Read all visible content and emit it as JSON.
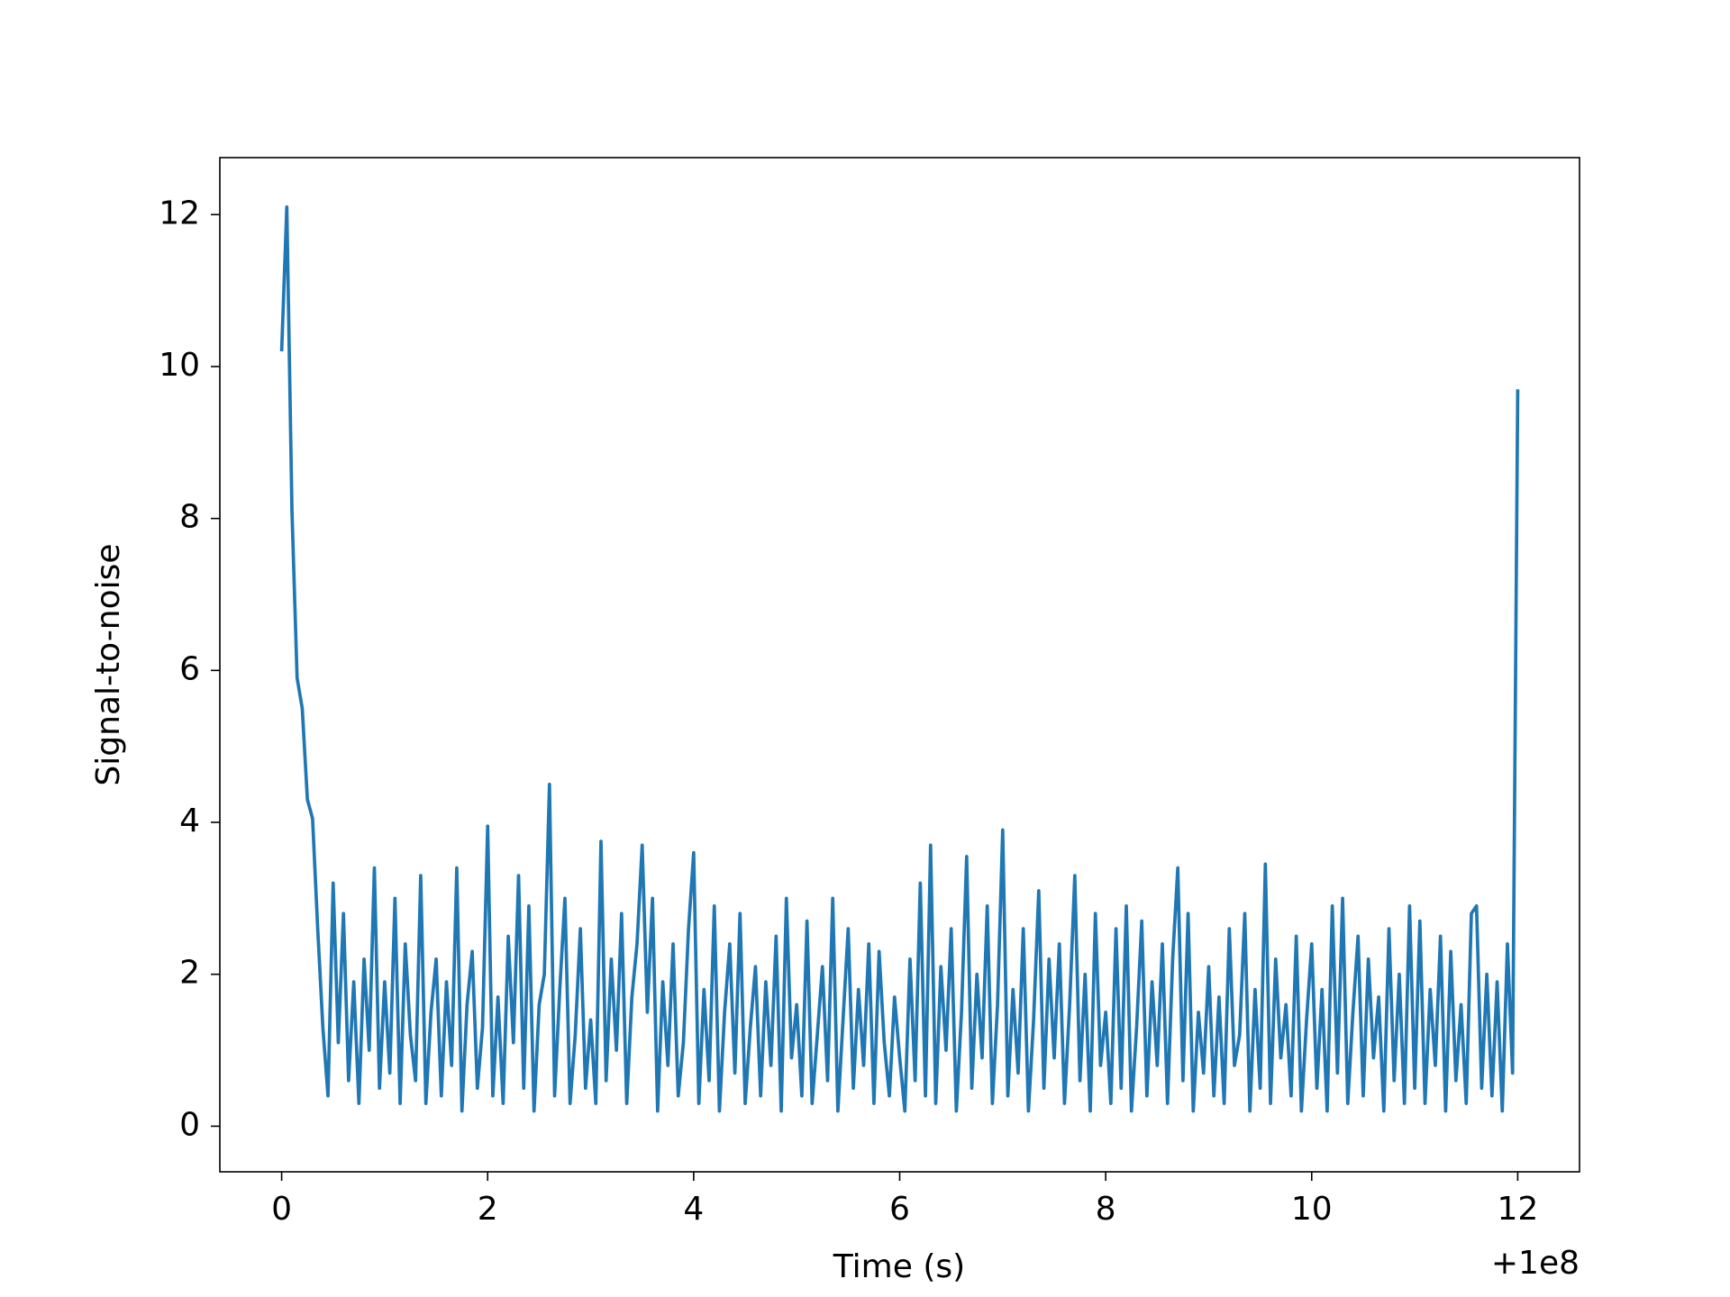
{
  "chart_data": {
    "type": "line",
    "xlabel": "Time (s)",
    "ylabel": "Signal-to-noise",
    "x_offset_label": "+1e8",
    "color": "#1f77b4",
    "xlim": [
      -0.6,
      12.6
    ],
    "ylim": [
      -0.6,
      12.75
    ],
    "xticks": [
      0,
      2,
      4,
      6,
      8,
      10,
      12
    ],
    "yticks": [
      0,
      2,
      4,
      6,
      8,
      10,
      12
    ],
    "x": [
      0,
      0.05,
      0.1,
      0.15,
      0.2,
      0.25,
      0.3,
      0.35,
      0.4,
      0.45,
      0.5,
      0.55,
      0.6,
      0.65,
      0.7,
      0.75,
      0.8,
      0.85,
      0.9,
      0.95,
      1,
      1.05,
      1.1,
      1.15,
      1.2,
      1.25,
      1.3,
      1.35,
      1.4,
      1.45,
      1.5,
      1.55,
      1.6,
      1.65,
      1.7,
      1.75,
      1.8,
      1.85,
      1.9,
      1.95,
      2,
      2.05,
      2.1,
      2.15,
      2.2,
      2.25,
      2.3,
      2.35,
      2.4,
      2.45,
      2.5,
      2.55,
      2.6,
      2.65,
      2.7,
      2.75,
      2.8,
      2.85,
      2.9,
      2.95,
      3,
      3.05,
      3.1,
      3.15,
      3.2,
      3.25,
      3.3,
      3.35,
      3.4,
      3.45,
      3.5,
      3.55,
      3.6,
      3.65,
      3.7,
      3.75,
      3.8,
      3.85,
      3.9,
      3.95,
      4,
      4.05,
      4.1,
      4.15,
      4.2,
      4.25,
      4.3,
      4.35,
      4.4,
      4.45,
      4.5,
      4.55,
      4.6,
      4.65,
      4.7,
      4.75,
      4.8,
      4.85,
      4.9,
      4.95,
      5,
      5.05,
      5.1,
      5.15,
      5.2,
      5.25,
      5.3,
      5.35,
      5.4,
      5.45,
      5.5,
      5.55,
      5.6,
      5.65,
      5.7,
      5.75,
      5.8,
      5.85,
      5.9,
      5.95,
      6,
      6.05,
      6.1,
      6.15,
      6.2,
      6.25,
      6.3,
      6.35,
      6.4,
      6.45,
      6.5,
      6.55,
      6.6,
      6.65,
      6.7,
      6.75,
      6.8,
      6.85,
      6.9,
      6.95,
      7,
      7.05,
      7.1,
      7.15,
      7.2,
      7.25,
      7.3,
      7.35,
      7.4,
      7.45,
      7.5,
      7.55,
      7.6,
      7.65,
      7.7,
      7.75,
      7.8,
      7.85,
      7.9,
      7.95,
      8,
      8.05,
      8.1,
      8.15,
      8.2,
      8.25,
      8.3,
      8.35,
      8.4,
      8.45,
      8.5,
      8.55,
      8.6,
      8.65,
      8.7,
      8.75,
      8.8,
      8.85,
      8.9,
      8.95,
      9,
      9.05,
      9.1,
      9.15,
      9.2,
      9.25,
      9.3,
      9.35,
      9.4,
      9.45,
      9.5,
      9.55,
      9.6,
      9.65,
      9.7,
      9.75,
      9.8,
      9.85,
      9.9,
      9.95,
      10,
      10.05,
      10.1,
      10.15,
      10.2,
      10.25,
      10.3,
      10.35,
      10.4,
      10.45,
      10.5,
      10.55,
      10.6,
      10.65,
      10.7,
      10.75,
      10.8,
      10.85,
      10.9,
      10.95,
      11,
      11.05,
      11.1,
      11.15,
      11.2,
      11.25,
      11.3,
      11.35,
      11.4,
      11.45,
      11.5,
      11.55,
      11.6,
      11.65,
      11.7,
      11.75,
      11.8,
      11.85,
      11.9,
      11.95,
      12
    ],
    "values": [
      10.2,
      12.1,
      8.1,
      5.9,
      5.5,
      4.3,
      4.05,
      2.6,
      1.3,
      0.4,
      3.2,
      1.1,
      2.8,
      0.6,
      1.9,
      0.3,
      2.2,
      1.0,
      3.4,
      0.5,
      1.9,
      0.7,
      3.0,
      0.3,
      2.4,
      1.2,
      0.6,
      3.3,
      0.3,
      1.5,
      2.2,
      0.4,
      1.9,
      0.8,
      3.4,
      0.2,
      1.6,
      2.3,
      0.5,
      1.3,
      3.95,
      0.4,
      1.7,
      0.3,
      2.5,
      1.1,
      3.3,
      0.5,
      2.9,
      0.2,
      1.6,
      2.0,
      4.5,
      0.4,
      1.8,
      3.0,
      0.3,
      1.2,
      2.6,
      0.5,
      1.4,
      0.3,
      3.75,
      0.6,
      2.2,
      1.0,
      2.8,
      0.3,
      1.7,
      2.4,
      3.7,
      1.5,
      3.0,
      0.2,
      1.9,
      0.8,
      2.4,
      0.4,
      1.1,
      2.6,
      3.6,
      0.3,
      1.8,
      0.6,
      2.9,
      0.2,
      1.5,
      2.4,
      0.7,
      2.8,
      0.3,
      1.3,
      2.1,
      0.4,
      1.9,
      0.8,
      2.5,
      0.2,
      3.0,
      0.9,
      1.6,
      0.4,
      2.7,
      0.3,
      1.2,
      2.1,
      0.6,
      3.0,
      0.2,
      1.4,
      2.6,
      0.5,
      1.8,
      0.8,
      2.4,
      0.3,
      2.3,
      1.1,
      0.4,
      1.7,
      0.9,
      0.2,
      2.2,
      0.6,
      3.2,
      0.4,
      3.7,
      0.3,
      2.1,
      1.0,
      2.6,
      0.2,
      1.5,
      3.55,
      0.5,
      2.0,
      0.9,
      2.9,
      0.3,
      1.6,
      3.9,
      0.4,
      1.8,
      0.7,
      2.6,
      0.2,
      1.4,
      3.1,
      0.5,
      2.2,
      0.9,
      2.4,
      0.3,
      1.6,
      3.3,
      0.6,
      2.0,
      0.2,
      2.8,
      0.8,
      1.5,
      0.3,
      2.6,
      0.5,
      2.9,
      0.2,
      1.3,
      2.7,
      0.4,
      1.9,
      0.8,
      2.4,
      0.3,
      2.2,
      3.4,
      0.6,
      2.8,
      0.2,
      1.5,
      0.7,
      2.1,
      0.4,
      1.7,
      0.3,
      2.6,
      0.8,
      1.2,
      2.8,
      0.2,
      1.8,
      0.5,
      3.45,
      0.3,
      2.2,
      0.9,
      1.6,
      0.4,
      2.5,
      0.2,
      1.4,
      2.4,
      0.5,
      1.8,
      0.2,
      2.9,
      0.7,
      3.0,
      0.3,
      1.5,
      2.5,
      0.4,
      2.2,
      0.9,
      1.7,
      0.2,
      2.6,
      0.6,
      2.0,
      0.3,
      2.9,
      0.5,
      2.7,
      0.3,
      1.8,
      0.8,
      2.5,
      0.2,
      2.3,
      0.6,
      1.6,
      0.3,
      2.8,
      2.9,
      0.5,
      2.0,
      0.4,
      1.9,
      0.2,
      2.4,
      0.7,
      9.7
    ]
  }
}
